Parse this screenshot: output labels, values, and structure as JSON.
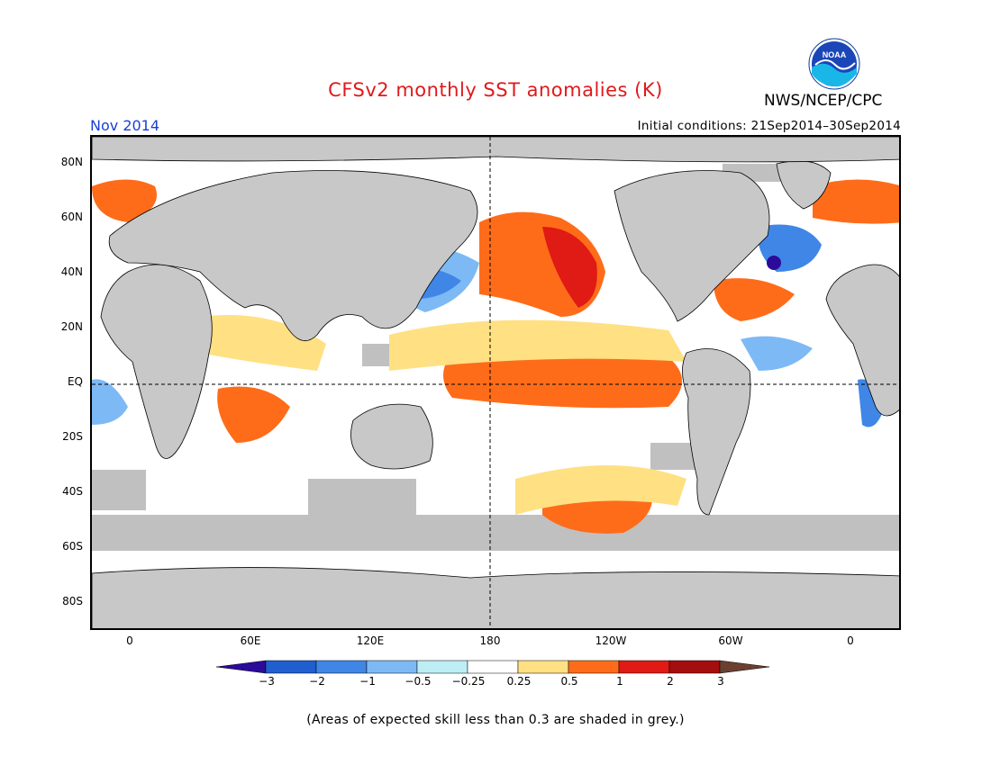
{
  "header": {
    "title": "CFSv2 monthly SST anomalies (K)",
    "organization": "NWS/NCEP/CPC",
    "logo_text": "NOAA",
    "month": "Nov 2014",
    "initial_conditions": "Initial conditions: 21Sep2014–30Sep2014"
  },
  "map": {
    "latitude_labels": [
      "80N",
      "60N",
      "40N",
      "20N",
      "EQ",
      "20S",
      "40S",
      "60S",
      "80S"
    ],
    "longitude_labels": [
      "0",
      "60E",
      "120E",
      "180",
      "120W",
      "60W",
      "0"
    ],
    "land_color": "#c8c8c8",
    "grey_skill_color": "#c0c0c0"
  },
  "legend": {
    "tick_labels": [
      "−3",
      "−2",
      "−1",
      "−0.5",
      "−0.25",
      "0.25",
      "0.5",
      "1",
      "2",
      "3"
    ],
    "colors": [
      "#2c0a9a",
      "#1f5fd0",
      "#3f86e6",
      "#7db9f5",
      "#bdeef6",
      "#ffffff",
      "#ffe082",
      "#fe6c1a",
      "#e01a14",
      "#a50e0e",
      "#6b4030"
    ]
  },
  "footnote": "(Areas of expected skill less than 0.3 are shaded in grey.)"
}
